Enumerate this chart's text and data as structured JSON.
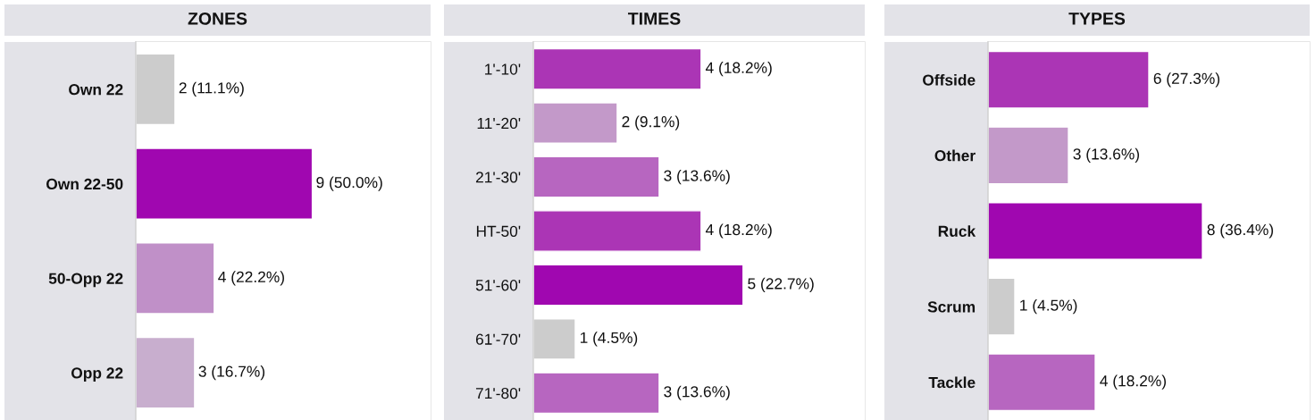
{
  "chart_data": [
    {
      "type": "bar",
      "orientation": "horizontal",
      "title": "ZONES",
      "categories": [
        "Own 22",
        "Own 22-50",
        "50-Opp 22",
        "Opp 22"
      ],
      "values": [
        2,
        9,
        4,
        3
      ],
      "colors": [
        "#cccccc",
        "#a007b0",
        "#c090c8",
        "#c8aece"
      ],
      "value_labels": [
        "2 (11.1%)",
        "9 (50.0%)",
        "4 (22.2%)",
        "3 (16.7%)"
      ],
      "grid": false,
      "legend": false
    },
    {
      "type": "bar",
      "orientation": "horizontal",
      "title": "TIMES",
      "categories": [
        "1'-10'",
        "11'-20'",
        "21'-30'",
        "HT-50'",
        "51'-60'",
        "61'-70'",
        "71'-80'"
      ],
      "values": [
        4,
        2,
        3,
        4,
        5,
        1,
        3
      ],
      "colors": [
        "#ab35b5",
        "#c399c9",
        "#b766c0",
        "#ab35b5",
        "#a007b0",
        "#cccccc",
        "#b766c0"
      ],
      "value_labels": [
        "4 (18.2%)",
        "2 (9.1%)",
        "3 (13.6%)",
        "4 (18.2%)",
        "5 (22.7%)",
        "1 (4.5%)",
        "3 (13.6%)"
      ],
      "grid": false,
      "legend": false
    },
    {
      "type": "bar",
      "orientation": "horizontal",
      "title": "TYPES",
      "categories": [
        "Offside",
        "Other",
        "Ruck",
        "Scrum",
        "Tackle"
      ],
      "values": [
        6,
        3,
        8,
        1,
        4
      ],
      "colors": [
        "#ab35b5",
        "#c399c9",
        "#a007b0",
        "#cccccc",
        "#b766c0"
      ],
      "value_labels": [
        "6 (27.3%)",
        "3 (13.6%)",
        "8 (36.4%)",
        "1 (4.5%)",
        "4 (18.2%)"
      ],
      "grid": false,
      "legend": false
    }
  ]
}
